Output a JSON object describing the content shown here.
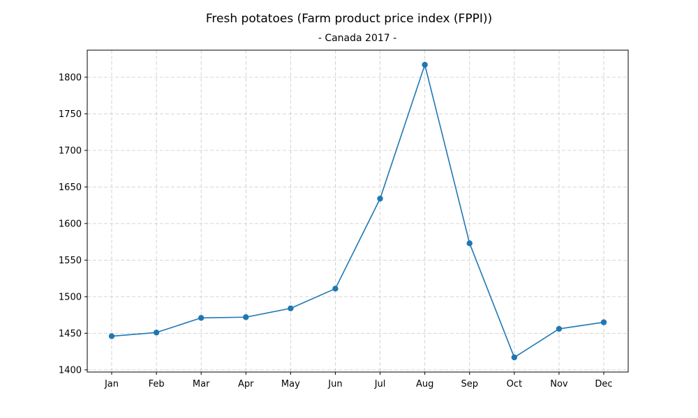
{
  "chart_data": {
    "type": "line",
    "title": "Fresh potatoes (Farm product price index (FPPI))",
    "subtitle": "- Canada 2017 -",
    "xlabel": "",
    "ylabel": "",
    "categories": [
      "Jan",
      "Feb",
      "Mar",
      "Apr",
      "May",
      "Jun",
      "Jul",
      "Aug",
      "Sep",
      "Oct",
      "Nov",
      "Dec"
    ],
    "series": [
      {
        "values": [
          1446,
          1451,
          1471,
          1472,
          1484,
          1511,
          1634,
          1817,
          1573,
          1417,
          1456,
          1465
        ],
        "color": "#1f77b4",
        "marker": "circle"
      }
    ],
    "yticks": [
      1400,
      1450,
      1500,
      1550,
      1600,
      1650,
      1700,
      1750,
      1800
    ],
    "ylim": [
      1397,
      1837
    ],
    "grid": true,
    "legend": "none"
  }
}
